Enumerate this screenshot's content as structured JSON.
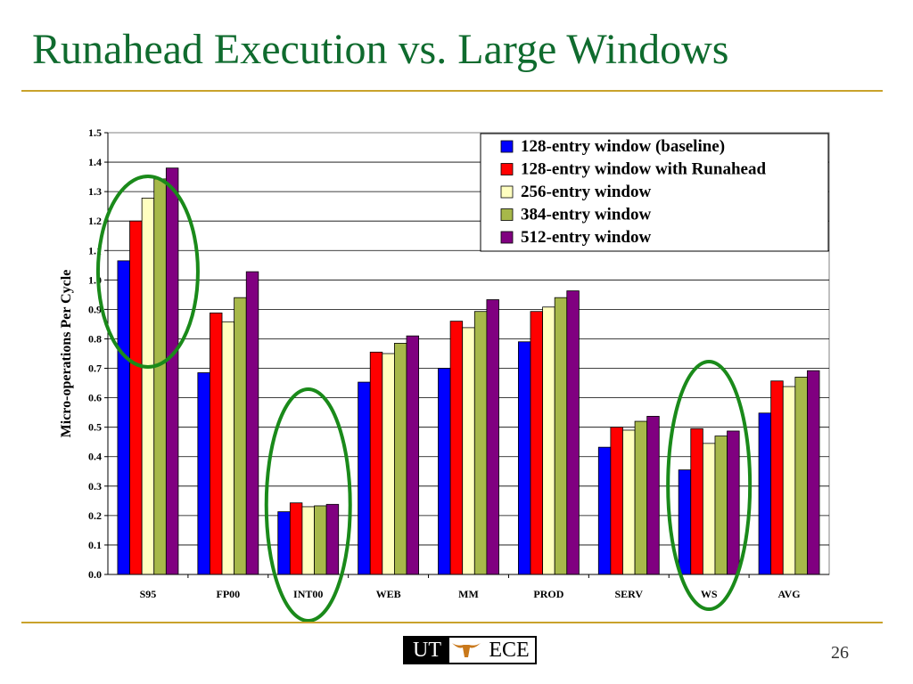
{
  "slide": {
    "title": "Runahead Execution vs. Large Windows",
    "page_number": "26",
    "logo": {
      "left_text": "UT",
      "right_text": "ECE",
      "icon": "longhorn-icon"
    }
  },
  "colors": {
    "title": "#0f6b2e",
    "rule": "#c9a22b",
    "highlight_circle": "#1a8a1a"
  },
  "highlights": {
    "circled_categories": [
      "S95",
      "INT00",
      "WS"
    ]
  },
  "chart_data": {
    "type": "bar",
    "ylabel": "Micro-operations Per Cycle",
    "xlabel": "",
    "ylim": [
      0.0,
      1.5
    ],
    "yticks": [
      "0.0",
      "0.1",
      "0.2",
      "0.3",
      "0.4",
      "0.5",
      "0.6",
      "0.7",
      "0.8",
      "0.9",
      "1.0",
      "1.1",
      "1.2",
      "1.3",
      "1.4",
      "1.5"
    ],
    "grid": true,
    "legend_position": "top-right",
    "categories": [
      "S95",
      "FP00",
      "INT00",
      "WEB",
      "MM",
      "PROD",
      "SERV",
      "WS",
      "AVG"
    ],
    "series": [
      {
        "name": "128-entry window (baseline)",
        "color": "#0000ff",
        "values": [
          1.065,
          0.685,
          0.213,
          0.653,
          0.7,
          0.79,
          0.432,
          0.355,
          0.548
        ]
      },
      {
        "name": "128-entry window with Runahead",
        "color": "#ff0000",
        "values": [
          1.2,
          0.888,
          0.243,
          0.755,
          0.86,
          0.893,
          0.5,
          0.495,
          0.657
        ]
      },
      {
        "name": "256-entry window",
        "color": "#ffffc0",
        "values": [
          1.278,
          0.858,
          0.23,
          0.75,
          0.838,
          0.908,
          0.49,
          0.445,
          0.638
        ]
      },
      {
        "name": "384-entry window",
        "color": "#a7b84a",
        "values": [
          1.343,
          0.94,
          0.233,
          0.785,
          0.893,
          0.94,
          0.52,
          0.47,
          0.67
        ]
      },
      {
        "name": "512-entry window",
        "color": "#800080",
        "values": [
          1.38,
          1.028,
          0.238,
          0.81,
          0.933,
          0.963,
          0.537,
          0.487,
          0.692
        ]
      }
    ]
  }
}
